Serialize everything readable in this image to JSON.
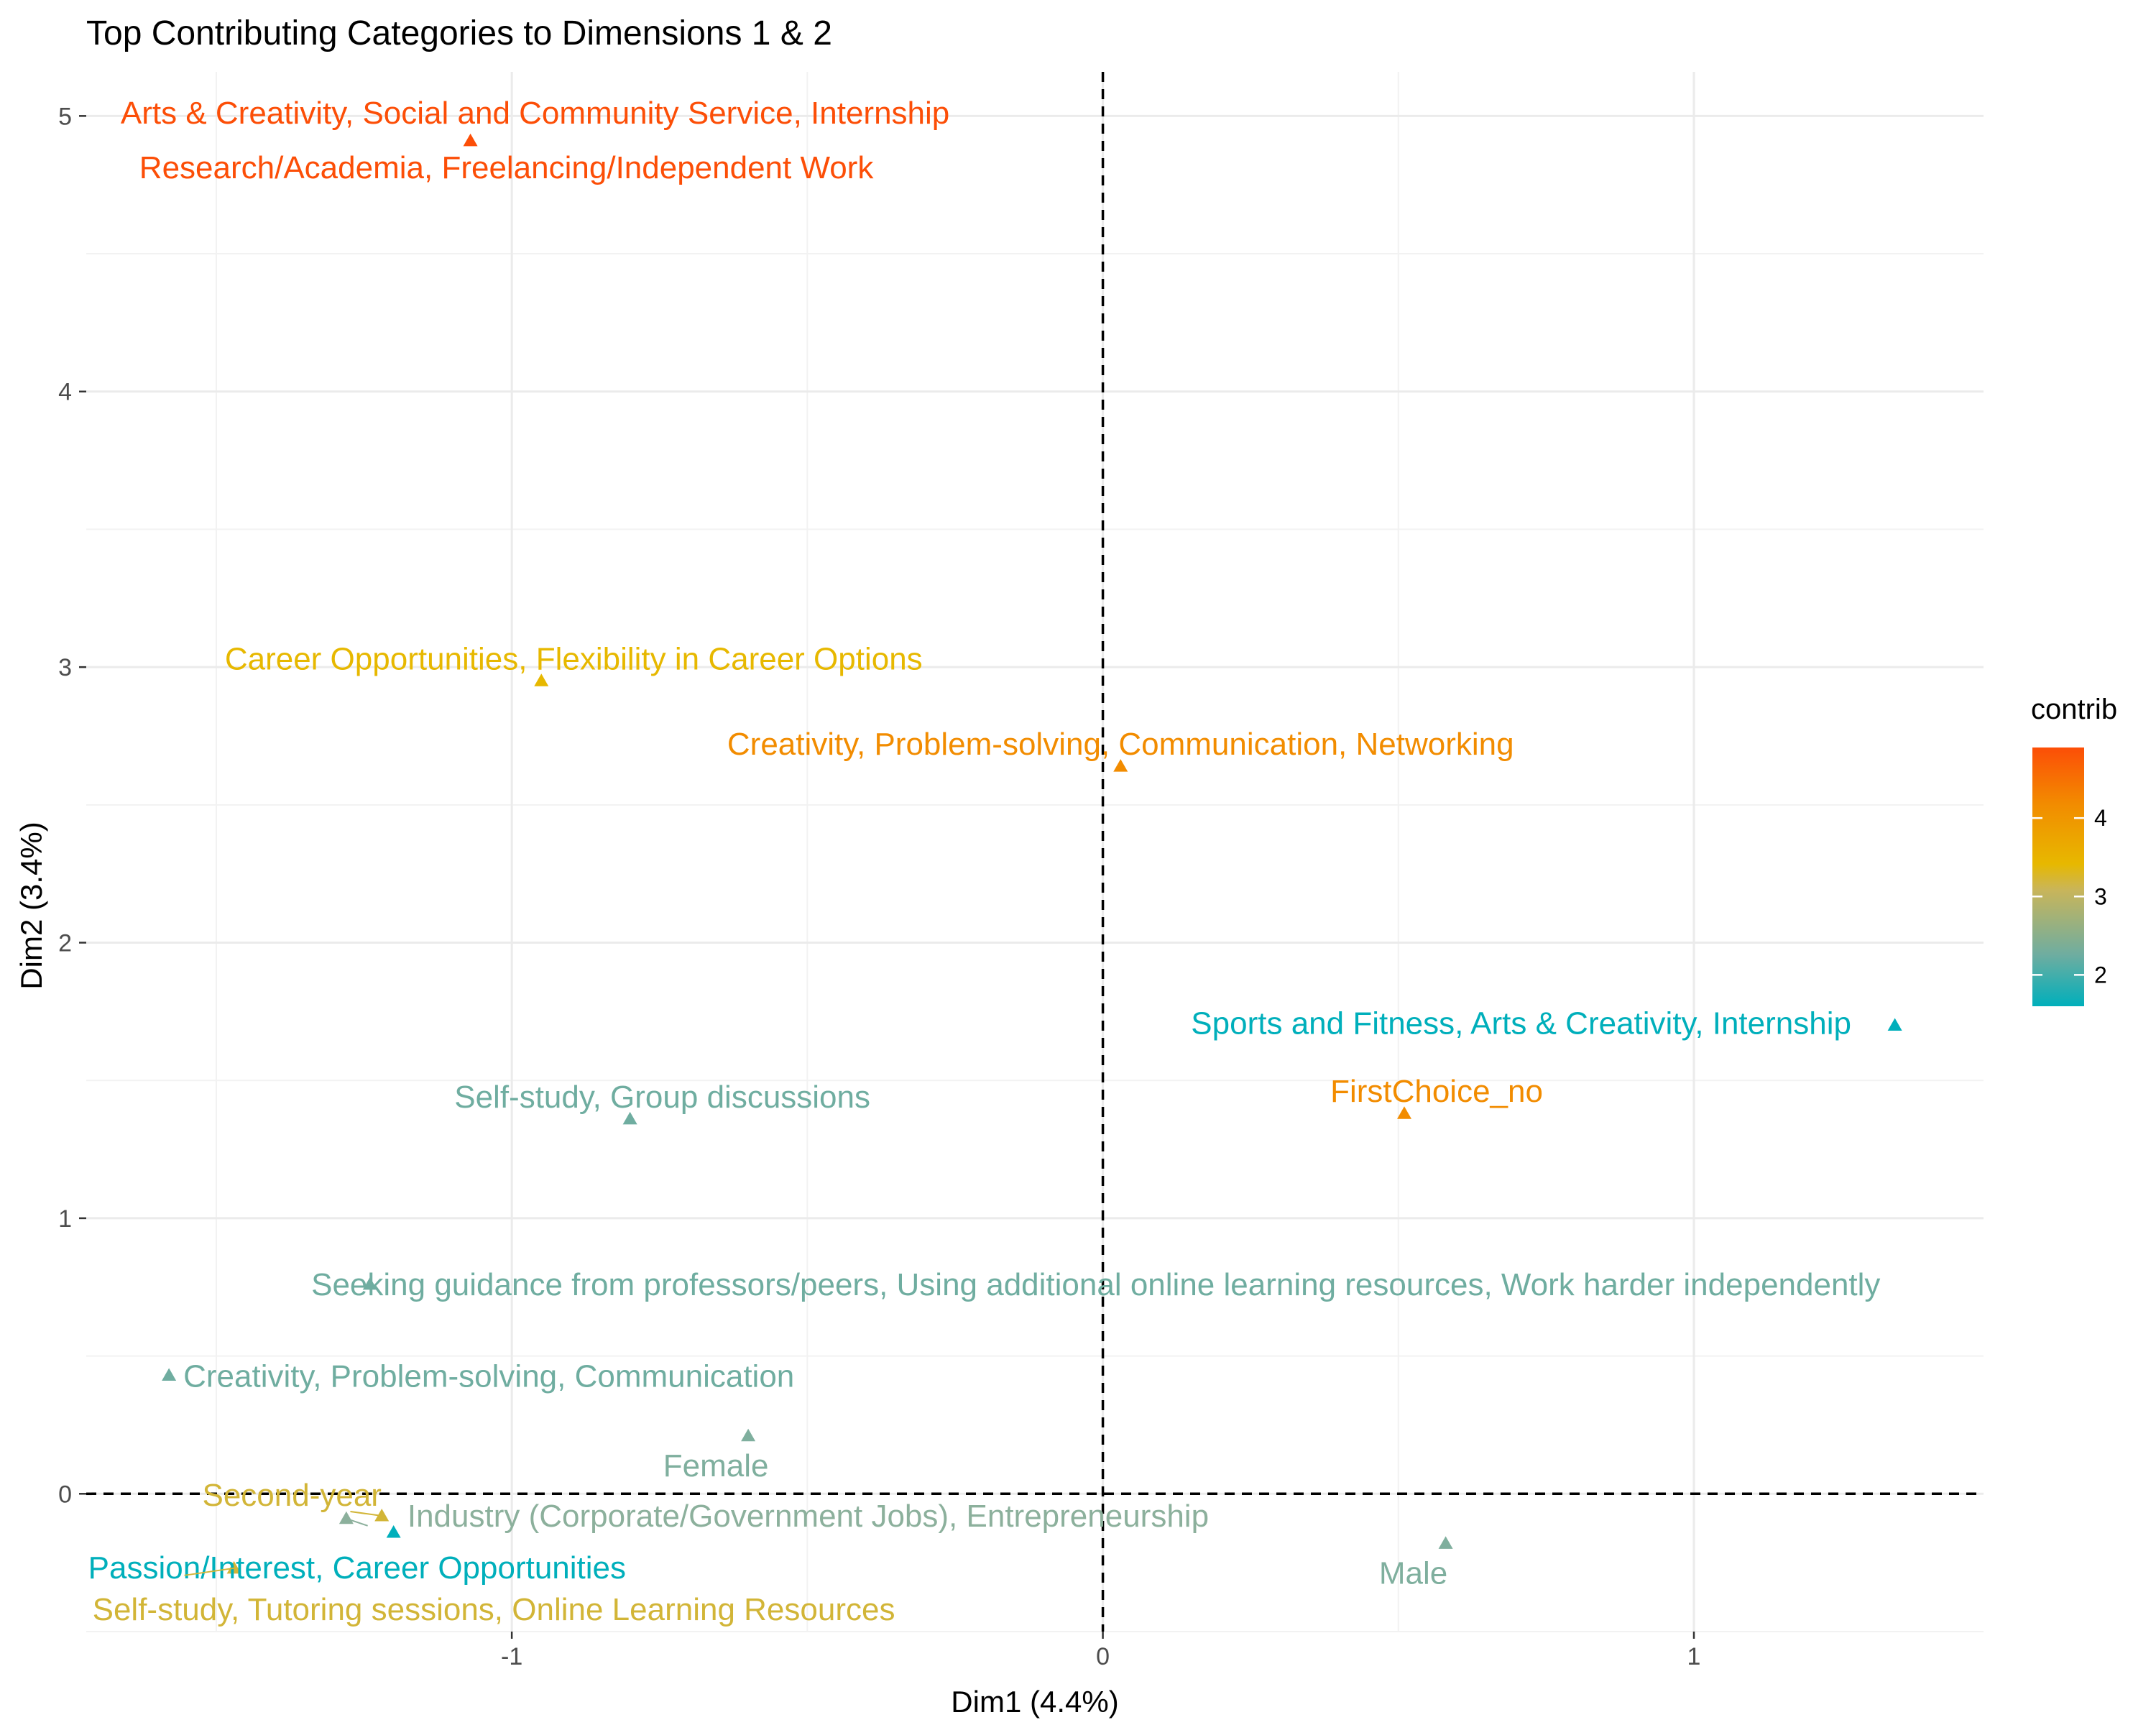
{
  "chart_data": {
    "type": "scatter",
    "title": "Top Contributing Categories to Dimensions 1 & 2",
    "xlabel": "Dim1 (4.4%)",
    "ylabel": "Dim2 (3.4%)",
    "xlim": [
      -1.72,
      1.49
    ],
    "ylim": [
      -0.5,
      5.16
    ],
    "x_ticks": [
      -1,
      0,
      1
    ],
    "x_tick_labels": [
      "-1",
      "0",
      "1"
    ],
    "y_ticks": [
      0,
      1,
      2,
      3,
      4,
      5
    ],
    "y_tick_labels": [
      "0",
      "1",
      "2",
      "3",
      "4",
      "5"
    ],
    "grid": true,
    "reference_lines": {
      "x": 0,
      "y": 0,
      "style": "dashed"
    },
    "marker": "triangle",
    "legend": {
      "title": "contrib",
      "placement": "right",
      "range": [
        1.6,
        4.9
      ],
      "ticks": [
        2,
        3,
        4
      ],
      "tick_labels": [
        "2",
        "3",
        "4"
      ],
      "colors": {
        "low": "#00AFBB",
        "mid_low": "#8CB09C",
        "mid": "#E7B800",
        "mid_high": "#F28C00",
        "high": "#FC4E07"
      }
    },
    "points": [
      {
        "label": "Arts & Creativity, Social and Community Service, Internship\nResearch/Academia, Freelancing/Independent Work",
        "x": -1.07,
        "y": 4.91,
        "contrib": 4.9,
        "color": "#FC4E07"
      },
      {
        "label": "Career Opportunities, Flexibility in Career Options",
        "x": -0.95,
        "y": 2.95,
        "contrib": 3.1,
        "color": "#E7B800"
      },
      {
        "label": "Creativity, Problem-solving, Communication, Networking",
        "x": 0.03,
        "y": 2.64,
        "contrib": 3.9,
        "color": "#F28C00"
      },
      {
        "label": "Sports and Fitness, Arts & Creativity, Internship",
        "x": 1.34,
        "y": 1.7,
        "contrib": 1.6,
        "color": "#00AFBB"
      },
      {
        "label": "FirstChoice_no",
        "x": 0.51,
        "y": 1.38,
        "contrib": 4.1,
        "color": "#F28C00"
      },
      {
        "label": "Self-study, Group discussions",
        "x": -0.8,
        "y": 1.36,
        "contrib": 2.0,
        "color": "#6FADA0"
      },
      {
        "label": "Seeking guidance from professors/peers, Using additional online learning resources, Work harder independently",
        "x": -1.24,
        "y": 0.76,
        "contrib": 2.0,
        "color": "#6FADA0"
      },
      {
        "label": "Creativity, Problem-solving, Communication",
        "x": -1.58,
        "y": 0.43,
        "contrib": 2.0,
        "color": "#6FADA0"
      },
      {
        "label": "Female",
        "x": -0.6,
        "y": 0.21,
        "contrib": 2.2,
        "color": "#7FAF9E"
      },
      {
        "label": "Second-year",
        "x": -1.22,
        "y": -0.08,
        "contrib": 2.9,
        "color": "#D2B537"
      },
      {
        "label": "Industry (Corporate/Government Jobs), Entrepreneurship",
        "x": -1.28,
        "y": -0.09,
        "contrib": 2.3,
        "color": "#8CB09C"
      },
      {
        "label": "Passion/Interest, Career Opportunities",
        "x": -1.2,
        "y": -0.14,
        "contrib": 1.7,
        "color": "#00AFBB"
      },
      {
        "label": "Self-study, Tutoring sessions, Online Learning Resources",
        "x": -1.47,
        "y": -0.27,
        "contrib": 2.9,
        "color": "#D2B537"
      },
      {
        "label": "Male",
        "x": 0.58,
        "y": -0.18,
        "contrib": 2.1,
        "color": "#7FAF9E"
      }
    ]
  }
}
